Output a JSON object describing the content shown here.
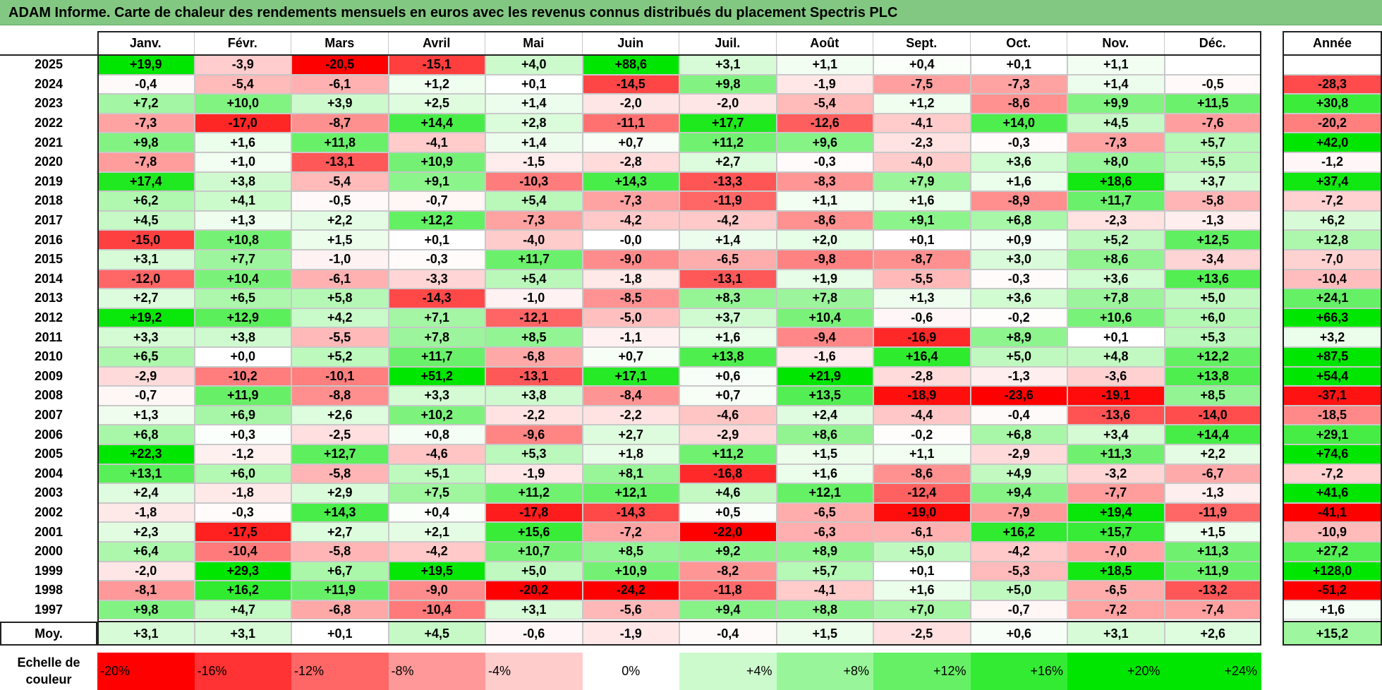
{
  "title": "ADAM Informe. Carte de chaleur des rendements mensuels en euros avec les revenus connus distribués du placement Spectris PLC",
  "months": [
    "Janv.",
    "Févr.",
    "Mars",
    "Avril",
    "Mai",
    "Juin",
    "Juil.",
    "Août",
    "Sept.",
    "Oct.",
    "Nov.",
    "Déc."
  ],
  "year_header": "Année",
  "avg_label": "Moy.",
  "scale_title": "Echelle de couleur",
  "colors": {
    "strong_red": "#ff0000",
    "strong_green": "#00e600",
    "neutral": "#ffffff",
    "title_bg": "#82c882"
  },
  "chart_data": {
    "type": "heatmap",
    "title": "ADAM Informe. Carte de chaleur des rendements mensuels en euros avec les revenus connus distribués du placement Spectris PLC",
    "x_categories": [
      "Janv.",
      "Févr.",
      "Mars",
      "Avril",
      "Mai",
      "Juin",
      "Juil.",
      "Août",
      "Sept.",
      "Oct.",
      "Nov.",
      "Déc."
    ],
    "rows": [
      {
        "year": "2025",
        "values": [
          "+19,9",
          "-3,9",
          "-20,5",
          "-15,1",
          "+4,0",
          "+88,6",
          "+3,1",
          "+1,1",
          "+0,4",
          "+0,1",
          "+1,1",
          ""
        ],
        "annual": ""
      },
      {
        "year": "2024",
        "values": [
          "-0,4",
          "-5,4",
          "-6,1",
          "+1,2",
          "+0,1",
          "-14,5",
          "+9,8",
          "-1,9",
          "-7,5",
          "-7,3",
          "+1,4",
          "-0,5"
        ],
        "annual": "-28,3"
      },
      {
        "year": "2023",
        "values": [
          "+7,2",
          "+10,0",
          "+3,9",
          "+2,5",
          "+1,4",
          "-2,0",
          "-2,0",
          "-5,4",
          "+1,2",
          "-8,6",
          "+9,9",
          "+11,5"
        ],
        "annual": "+30,8"
      },
      {
        "year": "2022",
        "values": [
          "-7,3",
          "-17,0",
          "-8,7",
          "+14,4",
          "+2,8",
          "-11,1",
          "+17,7",
          "-12,6",
          "-4,1",
          "+14,0",
          "+4,5",
          "-7,6"
        ],
        "annual": "-20,2"
      },
      {
        "year": "2021",
        "values": [
          "+9,8",
          "+1,6",
          "+11,8",
          "-4,1",
          "+1,4",
          "+0,7",
          "+11,2",
          "+9,6",
          "-2,3",
          "-0,3",
          "-7,3",
          "+5,7"
        ],
        "annual": "+42,0"
      },
      {
        "year": "2020",
        "values": [
          "-7,8",
          "+1,0",
          "-13,1",
          "+10,9",
          "-1,5",
          "-2,8",
          "+2,7",
          "-0,3",
          "-4,0",
          "+3,6",
          "+8,0",
          "+5,5"
        ],
        "annual": "-1,2"
      },
      {
        "year": "2019",
        "values": [
          "+17,4",
          "+3,8",
          "-5,4",
          "+9,1",
          "-10,3",
          "+14,3",
          "-13,3",
          "-8,3",
          "+7,9",
          "+1,6",
          "+18,6",
          "+3,7"
        ],
        "annual": "+37,4"
      },
      {
        "year": "2018",
        "values": [
          "+6,2",
          "+4,1",
          "-0,5",
          "-0,7",
          "+5,4",
          "-7,3",
          "-11,9",
          "+1,1",
          "+1,6",
          "-8,9",
          "+11,7",
          "-5,8"
        ],
        "annual": "-7,2"
      },
      {
        "year": "2017",
        "values": [
          "+4,5",
          "+1,3",
          "+2,2",
          "+12,2",
          "-7,3",
          "-4,2",
          "-4,2",
          "-8,6",
          "+9,1",
          "+6,8",
          "-2,3",
          "-1,3"
        ],
        "annual": "+6,2"
      },
      {
        "year": "2016",
        "values": [
          "-15,0",
          "+10,8",
          "+1,5",
          "+0,1",
          "-4,0",
          "-0,0",
          "+1,4",
          "+2,0",
          "+0,1",
          "+0,9",
          "+5,2",
          "+12,5"
        ],
        "annual": "+12,8"
      },
      {
        "year": "2015",
        "values": [
          "+3,1",
          "+7,7",
          "-1,0",
          "-0,3",
          "+11,7",
          "-9,0",
          "-6,5",
          "-9,8",
          "-8,7",
          "+3,0",
          "+8,6",
          "-3,4"
        ],
        "annual": "-7,0"
      },
      {
        "year": "2014",
        "values": [
          "-12,0",
          "+10,4",
          "-6,1",
          "-3,3",
          "+5,4",
          "-1,8",
          "-13,1",
          "+1,9",
          "-5,5",
          "-0,3",
          "+3,6",
          "+13,6"
        ],
        "annual": "-10,4"
      },
      {
        "year": "2013",
        "values": [
          "+2,7",
          "+6,5",
          "+5,8",
          "-14,3",
          "-1,0",
          "-8,5",
          "+8,3",
          "+7,8",
          "+1,3",
          "+3,6",
          "+7,8",
          "+5,0"
        ],
        "annual": "+24,1"
      },
      {
        "year": "2012",
        "values": [
          "+19,2",
          "+12,9",
          "+4,2",
          "+7,1",
          "-12,1",
          "-5,0",
          "+3,7",
          "+10,4",
          "-0,6",
          "-0,2",
          "+10,6",
          "+6,0"
        ],
        "annual": "+66,3"
      },
      {
        "year": "2011",
        "values": [
          "+3,3",
          "+3,8",
          "-5,5",
          "+7,8",
          "+8,5",
          "-1,1",
          "+1,6",
          "-9,4",
          "-16,9",
          "+8,9",
          "+0,1",
          "+5,3"
        ],
        "annual": "+3,2"
      },
      {
        "year": "2010",
        "values": [
          "+6,5",
          "+0,0",
          "+5,2",
          "+11,7",
          "-6,8",
          "+0,7",
          "+13,8",
          "-1,6",
          "+16,4",
          "+5,0",
          "+4,8",
          "+12,2"
        ],
        "annual": "+87,5"
      },
      {
        "year": "2009",
        "values": [
          "-2,9",
          "-10,2",
          "-10,1",
          "+51,2",
          "-13,1",
          "+17,1",
          "+0,6",
          "+21,9",
          "-2,8",
          "-1,3",
          "-3,6",
          "+13,8"
        ],
        "annual": "+54,4"
      },
      {
        "year": "2008",
        "values": [
          "-0,7",
          "+11,9",
          "-8,8",
          "+3,3",
          "+3,8",
          "-8,4",
          "+0,7",
          "+13,5",
          "-18,9",
          "-23,6",
          "-19,1",
          "+8,5"
        ],
        "annual": "-37,1"
      },
      {
        "year": "2007",
        "values": [
          "+1,3",
          "+6,9",
          "+2,6",
          "+10,2",
          "-2,2",
          "-2,2",
          "-4,6",
          "+2,4",
          "-4,4",
          "-0,4",
          "-13,6",
          "-14,0"
        ],
        "annual": "-18,5"
      },
      {
        "year": "2006",
        "values": [
          "+6,8",
          "+0,3",
          "-2,5",
          "+0,8",
          "-9,6",
          "+2,7",
          "-2,9",
          "+8,6",
          "-0,2",
          "+6,8",
          "+3,4",
          "+14,4"
        ],
        "annual": "+29,1"
      },
      {
        "year": "2005",
        "values": [
          "+22,3",
          "-1,2",
          "+12,7",
          "-4,6",
          "+5,3",
          "+1,8",
          "+11,2",
          "+1,5",
          "+1,1",
          "-2,9",
          "+11,3",
          "+2,2"
        ],
        "annual": "+74,6"
      },
      {
        "year": "2004",
        "values": [
          "+13,1",
          "+6,0",
          "-5,8",
          "+5,1",
          "-1,9",
          "+8,1",
          "-16,8",
          "+1,6",
          "-8,6",
          "+4,9",
          "-3,2",
          "-6,7"
        ],
        "annual": "-7,2"
      },
      {
        "year": "2003",
        "values": [
          "+2,4",
          "-1,8",
          "+2,9",
          "+7,5",
          "+11,2",
          "+12,1",
          "+4,6",
          "+12,1",
          "-12,4",
          "+9,4",
          "-7,7",
          "-1,3"
        ],
        "annual": "+41,6"
      },
      {
        "year": "2002",
        "values": [
          "-1,8",
          "-0,3",
          "+14,3",
          "+0,4",
          "-17,8",
          "-14,3",
          "+0,5",
          "-6,5",
          "-19,0",
          "-7,9",
          "+19,4",
          "-11,9"
        ],
        "annual": "-41,1"
      },
      {
        "year": "2001",
        "values": [
          "+2,3",
          "-17,5",
          "+2,7",
          "+2,1",
          "+15,6",
          "-7,2",
          "-22,0",
          "-6,3",
          "-6,1",
          "+16,2",
          "+15,7",
          "+1,5"
        ],
        "annual": "-10,9"
      },
      {
        "year": "2000",
        "values": [
          "+6,4",
          "-10,4",
          "-5,8",
          "-4,2",
          "+10,7",
          "+8,5",
          "+9,2",
          "+8,9",
          "+5,0",
          "-4,2",
          "-7,0",
          "+11,3"
        ],
        "annual": "+27,2"
      },
      {
        "year": "1999",
        "values": [
          "-2,0",
          "+29,3",
          "+6,7",
          "+19,5",
          "+5,0",
          "+10,9",
          "-8,2",
          "+5,7",
          "+0,1",
          "-5,3",
          "+18,5",
          "+11,9"
        ],
        "annual": "+128,0"
      },
      {
        "year": "1998",
        "values": [
          "-8,1",
          "+16,2",
          "+11,9",
          "-9,0",
          "-20,2",
          "-24,2",
          "-11,8",
          "-4,1",
          "+1,6",
          "+5,0",
          "-6,5",
          "-13,2"
        ],
        "annual": "-51,2"
      },
      {
        "year": "1997",
        "values": [
          "+9,8",
          "+4,7",
          "-6,8",
          "-10,4",
          "+3,1",
          "-5,6",
          "+9,4",
          "+8,8",
          "+7,0",
          "-0,7",
          "-7,2",
          "-7,4"
        ],
        "annual": "+1,6"
      }
    ],
    "averages": [
      "+3,1",
      "+3,1",
      "+0,1",
      "+4,5",
      "-0,6",
      "-1,9",
      "-0,4",
      "+1,5",
      "-2,5",
      "+0,6",
      "+3,1",
      "+2,6"
    ],
    "average_annual": "+15,2",
    "color_scale": [
      {
        "label": "-20%",
        "value": -20
      },
      {
        "label": "-16%",
        "value": -16
      },
      {
        "label": "-12%",
        "value": -12
      },
      {
        "label": "-8%",
        "value": -8
      },
      {
        "label": "-4%",
        "value": -4
      },
      {
        "label": "0%",
        "value": 0
      },
      {
        "label": "+4%",
        "value": 4
      },
      {
        "label": "+8%",
        "value": 8
      },
      {
        "label": "+12%",
        "value": 12
      },
      {
        "label": "+16%",
        "value": 16
      },
      {
        "label": "+20%",
        "value": 20
      },
      {
        "label": "+24%",
        "value": 24
      }
    ]
  }
}
